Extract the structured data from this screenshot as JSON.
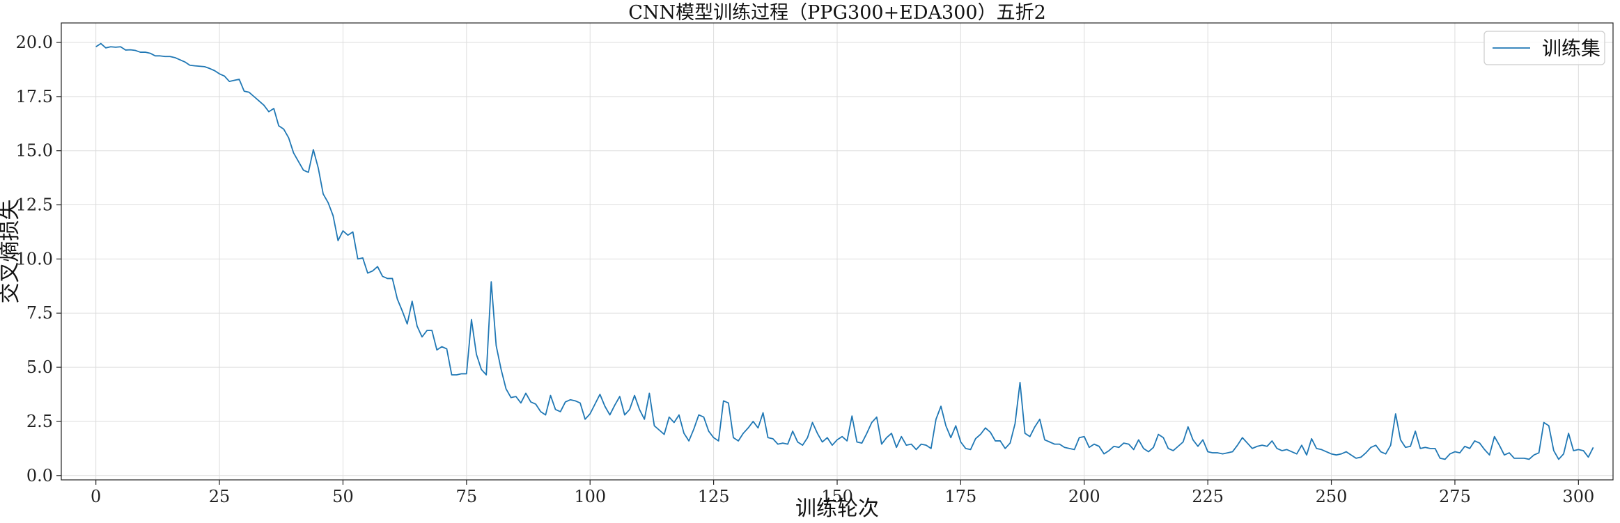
{
  "chart_data": {
    "type": "line",
    "title": "CNN模型训练过程（PPG300+EDA300）五折2",
    "xlabel": "训练轮次",
    "ylabel": "交叉熵损失",
    "xlim": [
      -7,
      307
    ],
    "ylim": [
      -0.2,
      20.9
    ],
    "xticks": [
      0,
      25,
      50,
      75,
      100,
      125,
      150,
      175,
      200,
      225,
      250,
      275,
      300
    ],
    "yticks": [
      0.0,
      2.5,
      5.0,
      7.5,
      10.0,
      12.5,
      15.0,
      17.5,
      20.0
    ],
    "xtick_labels": [
      "0",
      "25",
      "50",
      "75",
      "100",
      "125",
      "150",
      "175",
      "200",
      "225",
      "250",
      "275",
      "300"
    ],
    "ytick_labels": [
      "0.0",
      "2.5",
      "5.0",
      "7.5",
      "10.0",
      "12.5",
      "15.0",
      "17.5",
      "20.0"
    ],
    "grid": true,
    "legend_position": "top-right",
    "series": [
      {
        "name": "训练集",
        "color": "#1f77b4",
        "x_start": 0,
        "values": [
          19.8,
          19.95,
          19.75,
          19.8,
          19.78,
          19.8,
          19.65,
          19.66,
          19.63,
          19.55,
          19.55,
          19.5,
          19.38,
          19.38,
          19.35,
          19.35,
          19.3,
          19.2,
          19.1,
          18.95,
          18.92,
          18.9,
          18.88,
          18.8,
          18.7,
          18.55,
          18.45,
          18.2,
          18.25,
          18.3,
          17.75,
          17.7,
          17.5,
          17.3,
          17.1,
          16.8,
          16.95,
          16.15,
          16.0,
          15.6,
          14.9,
          14.5,
          14.1,
          14.0,
          15.05,
          14.2,
          13.0,
          12.6,
          12.0,
          10.85,
          11.3,
          11.1,
          11.25,
          10.0,
          10.05,
          9.35,
          9.45,
          9.65,
          9.2,
          9.1,
          9.1,
          8.15,
          7.6,
          7.0,
          8.05,
          6.9,
          6.4,
          6.7,
          6.7,
          5.8,
          5.95,
          5.85,
          4.65,
          4.65,
          4.7,
          4.7,
          7.2,
          5.6,
          4.9,
          4.65,
          8.95,
          6.0,
          4.9,
          4.0,
          3.6,
          3.65,
          3.35,
          3.8,
          3.4,
          3.3,
          2.95,
          2.8,
          3.7,
          3.05,
          2.95,
          3.4,
          3.5,
          3.45,
          3.35,
          2.6,
          2.85,
          3.3,
          3.75,
          3.2,
          2.8,
          3.25,
          3.65,
          2.8,
          3.05,
          3.7,
          3.05,
          2.6,
          3.8,
          2.3,
          2.1,
          1.9,
          2.7,
          2.45,
          2.8,
          1.95,
          1.6,
          2.15,
          2.8,
          2.7,
          2.05,
          1.75,
          1.6,
          3.45,
          3.35,
          1.75,
          1.6,
          1.95,
          2.2,
          2.5,
          2.2,
          2.9,
          1.75,
          1.7,
          1.45,
          1.5,
          1.45,
          2.05,
          1.55,
          1.4,
          1.75,
          2.45,
          1.95,
          1.55,
          1.75,
          1.4,
          1.65,
          1.8,
          1.6,
          2.75,
          1.55,
          1.5,
          1.95,
          2.45,
          2.7,
          1.45,
          1.75,
          1.95,
          1.3,
          1.8,
          1.4,
          1.45,
          1.2,
          1.45,
          1.4,
          1.25,
          2.6,
          3.2,
          2.3,
          1.75,
          2.3,
          1.55,
          1.25,
          1.2,
          1.7,
          1.9,
          2.2,
          2.0,
          1.6,
          1.6,
          1.25,
          1.5,
          2.4,
          4.3,
          1.95,
          1.8,
          2.25,
          2.6,
          1.65,
          1.55,
          1.45,
          1.45,
          1.3,
          1.25,
          1.2,
          1.75,
          1.8,
          1.3,
          1.45,
          1.35,
          1.0,
          1.15,
          1.35,
          1.3,
          1.5,
          1.45,
          1.2,
          1.65,
          1.25,
          1.1,
          1.3,
          1.9,
          1.75,
          1.25,
          1.15,
          1.35,
          1.55,
          2.25,
          1.65,
          1.35,
          1.65,
          1.1,
          1.05,
          1.05,
          1.0,
          1.05,
          1.1,
          1.4,
          1.75,
          1.5,
          1.25,
          1.35,
          1.4,
          1.35,
          1.6,
          1.25,
          1.15,
          1.2,
          1.1,
          1.0,
          1.4,
          0.95,
          1.7,
          1.25,
          1.2,
          1.1,
          1.0,
          0.95,
          1.0,
          1.1,
          0.95,
          0.8,
          0.85,
          1.05,
          1.3,
          1.4,
          1.1,
          1.0,
          1.4,
          2.85,
          1.65,
          1.3,
          1.35,
          2.05,
          1.25,
          1.3,
          1.25,
          1.25,
          0.8,
          0.75,
          1.0,
          1.1,
          1.05,
          1.35,
          1.25,
          1.6,
          1.5,
          1.2,
          0.95,
          1.8,
          1.4,
          0.95,
          1.05,
          0.8,
          0.8,
          0.8,
          0.75,
          0.95,
          1.05,
          2.45,
          2.3,
          1.15,
          0.75,
          1.0,
          1.95,
          1.15,
          1.2,
          1.15,
          0.85,
          1.3
        ]
      }
    ]
  }
}
